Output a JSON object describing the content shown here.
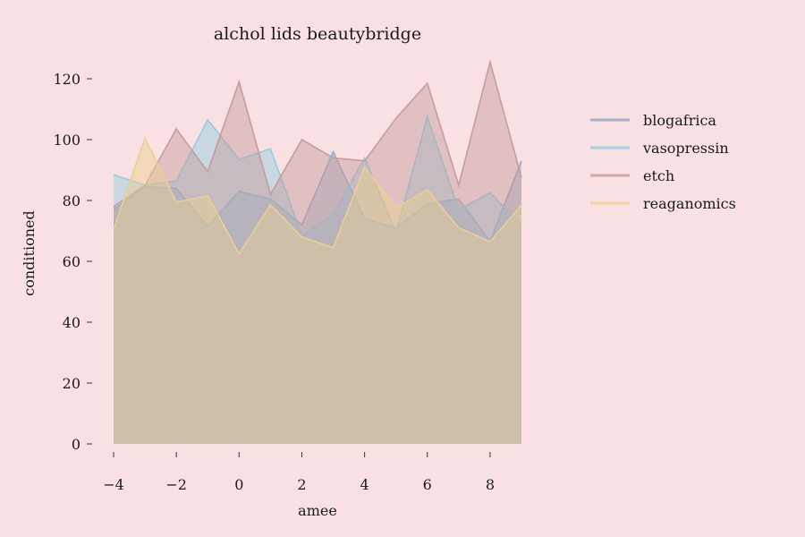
{
  "chart_data": {
    "type": "area",
    "title": "alchol lids beautybridge",
    "xlabel": "amee",
    "ylabel": "conditioned",
    "xlim": [
      -4,
      9
    ],
    "ylim": [
      0,
      125
    ],
    "x": [
      -4,
      -3,
      -2,
      -1,
      0,
      1,
      2,
      3,
      4,
      5,
      6,
      7,
      8,
      9
    ],
    "xticks": [
      -4,
      -2,
      0,
      2,
      4,
      6,
      8
    ],
    "xtick_labels": [
      "−4",
      "−2",
      "0",
      "2",
      "4",
      "6",
      "8"
    ],
    "yticks": [
      0,
      20,
      40,
      60,
      80,
      100,
      120
    ],
    "ytick_labels": [
      "0",
      "20",
      "40",
      "60",
      "80",
      "100",
      "120"
    ],
    "legend_position": "right",
    "grid": false,
    "series": [
      {
        "name": "blogafrica",
        "color": "#8fa9c8",
        "values": [
          77,
          84.5,
          84,
          71.5,
          83,
          80.5,
          72,
          96,
          74,
          71,
          79,
          80.5,
          66.5,
          93
        ]
      },
      {
        "name": "vasopressin",
        "color": "#8dcde0",
        "values": [
          88.5,
          85,
          86.5,
          106.5,
          93.5,
          97,
          68.5,
          75.5,
          94,
          69.5,
          107.5,
          77,
          82.5,
          72
        ]
      },
      {
        "name": "etch",
        "color": "#c49a9a",
        "values": [
          78,
          85,
          103.5,
          89.5,
          119,
          82,
          100,
          94,
          93,
          107,
          118.5,
          85,
          125.5,
          87.5
        ]
      },
      {
        "name": "reaganomics",
        "color": "#ecd08e",
        "values": [
          70.5,
          100.5,
          79.5,
          81.5,
          62.5,
          78.5,
          68,
          64.5,
          91,
          77.5,
          83.5,
          71,
          66.5,
          78.5
        ]
      }
    ]
  }
}
